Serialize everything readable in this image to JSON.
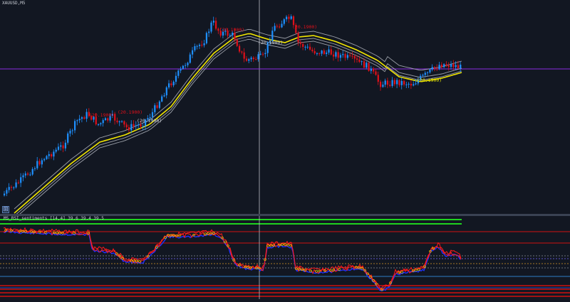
{
  "symbol_timeframe": "XAUUSD,M5",
  "indicator_title": "MS_RSI_sentiments [14,4] 39.6 39.4 39.5",
  "expand_icon_glyph": "⊞",
  "colors": {
    "background": "#121722",
    "bull_candle": "#1e90ff",
    "bear_candle": "#e0101a",
    "yellow_ma": "#f2e600",
    "envelope": "#c9cdd6",
    "level_line": "#8a2be2",
    "crosshair": "#b8bcc4",
    "rsi_red": "#ff1a1a",
    "rsi_blue": "#2030ff",
    "green_band": "#1fd31f",
    "marker_yellow": "#e8e800"
  },
  "chart_labels": [
    {
      "text": "(20.1900)",
      "color": "#e0101a"
    },
    {
      "text": "(20.1900)",
      "color": "#c8ccd4"
    },
    {
      "text": "(20.1900)",
      "color": "#e0101a"
    },
    {
      "text": "(20.1900)",
      "color": "#e0101a"
    },
    {
      "text": "(20.1900)",
      "color": "#e0101a"
    },
    {
      "text": "(20.1900)",
      "color": "#c8ccd4"
    },
    {
      "text": "(20.1900)",
      "color": "#e8e800"
    }
  ]
}
